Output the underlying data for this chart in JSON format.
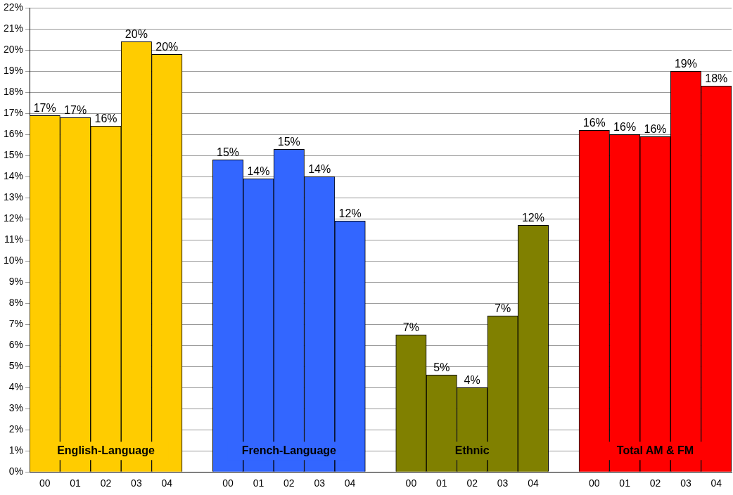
{
  "chart_data": {
    "type": "bar",
    "legend": false,
    "grid": "y",
    "categories": [
      "00",
      "01",
      "02",
      "03",
      "04",
      null,
      "00",
      "01",
      "02",
      "03",
      "04",
      null,
      "00",
      "01",
      "02",
      "03",
      "04",
      null,
      "00",
      "01",
      "02",
      "03",
      "04"
    ],
    "ylim": [
      0,
      22
    ],
    "yticks": [
      {
        "value": 0,
        "label": "0%"
      },
      {
        "value": 1,
        "label": "1%"
      },
      {
        "value": 2,
        "label": "2%"
      },
      {
        "value": 3,
        "label": "3%"
      },
      {
        "value": 4,
        "label": "4%"
      },
      {
        "value": 5,
        "label": "5%"
      },
      {
        "value": 6,
        "label": "6%"
      },
      {
        "value": 7,
        "label": "7%"
      },
      {
        "value": 8,
        "label": "8%"
      },
      {
        "value": 9,
        "label": "9%"
      },
      {
        "value": 10,
        "label": "10%"
      },
      {
        "value": 11,
        "label": "11%"
      },
      {
        "value": 12,
        "label": "12%"
      },
      {
        "value": 13,
        "label": "13%"
      },
      {
        "value": 14,
        "label": "14%"
      },
      {
        "value": 15,
        "label": "15%"
      },
      {
        "value": 16,
        "label": "16%"
      },
      {
        "value": 17,
        "label": "17%"
      },
      {
        "value": 18,
        "label": "18%"
      },
      {
        "value": 19,
        "label": "19%"
      },
      {
        "value": 20,
        "label": "20%"
      },
      {
        "value": 21,
        "label": "21%"
      },
      {
        "value": 22,
        "label": "22%"
      }
    ],
    "series": [
      {
        "name": "English-Language",
        "color": "#ffcc00",
        "values": [
          16.9,
          16.8,
          16.4,
          20.4,
          19.8,
          null,
          null,
          null,
          null,
          null,
          null,
          null,
          null,
          null,
          null,
          null,
          null,
          null,
          null,
          null,
          null,
          null,
          null
        ],
        "value_labels": [
          "17%",
          "17%",
          "16%",
          "20%",
          "20%",
          null,
          null,
          null,
          null,
          null,
          null,
          null,
          null,
          null,
          null,
          null,
          null,
          null,
          null,
          null,
          null,
          null,
          null
        ]
      },
      {
        "name": "French-Language",
        "color": "#3366ff",
        "values": [
          null,
          null,
          null,
          null,
          null,
          null,
          14.8,
          13.9,
          15.3,
          14.0,
          11.9,
          null,
          null,
          null,
          null,
          null,
          null,
          null,
          null,
          null,
          null,
          null,
          null
        ],
        "value_labels": [
          null,
          null,
          null,
          null,
          null,
          null,
          "15%",
          "14%",
          "15%",
          "14%",
          "12%",
          null,
          null,
          null,
          null,
          null,
          null,
          null,
          null,
          null,
          null,
          null,
          null
        ]
      },
      {
        "name": "Ethnic",
        "color": "#808000",
        "values": [
          null,
          null,
          null,
          null,
          null,
          null,
          null,
          null,
          null,
          null,
          null,
          null,
          6.5,
          4.6,
          4.0,
          7.4,
          11.7,
          null,
          null,
          null,
          null,
          null,
          null
        ],
        "value_labels": [
          null,
          null,
          null,
          null,
          null,
          null,
          null,
          null,
          null,
          null,
          null,
          null,
          "7%",
          "5%",
          "4%",
          "7%",
          "12%",
          null,
          null,
          null,
          null,
          null,
          null
        ]
      },
      {
        "name": "Total AM & FM",
        "color": "#ff0000",
        "values": [
          null,
          null,
          null,
          null,
          null,
          null,
          null,
          null,
          null,
          null,
          null,
          null,
          null,
          null,
          null,
          null,
          null,
          null,
          16.2,
          16.0,
          15.9,
          19.0,
          18.3
        ],
        "value_labels": [
          null,
          null,
          null,
          null,
          null,
          null,
          null,
          null,
          null,
          null,
          null,
          null,
          null,
          null,
          null,
          null,
          null,
          null,
          "16%",
          "16%",
          "16%",
          "19%",
          "18%"
        ]
      }
    ]
  }
}
